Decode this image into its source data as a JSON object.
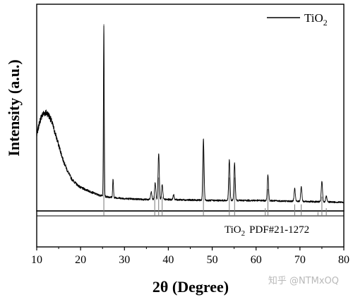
{
  "chart_data": {
    "type": "line",
    "xlabel": "2θ (Degree)",
    "ylabel": "Intensity (a.u.)",
    "xlim": [
      10,
      80
    ],
    "xticks": [
      10,
      20,
      30,
      40,
      50,
      60,
      70,
      80
    ],
    "y_ticks_shown": false,
    "grid": false,
    "legend_position": "top-right",
    "series": [
      {
        "name": "TiO2",
        "legend_main": "TiO",
        "legend_sub": "2",
        "color": "#000000",
        "profile": [
          {
            "x": 10.0,
            "y": 0.38
          },
          {
            "x": 10.5,
            "y": 0.44
          },
          {
            "x": 11.0,
            "y": 0.48
          },
          {
            "x": 11.5,
            "y": 0.5
          },
          {
            "x": 12.0,
            "y": 0.505
          },
          {
            "x": 12.5,
            "y": 0.5
          },
          {
            "x": 13.0,
            "y": 0.48
          },
          {
            "x": 13.5,
            "y": 0.45
          },
          {
            "x": 14.0,
            "y": 0.41
          },
          {
            "x": 15.0,
            "y": 0.33
          },
          {
            "x": 16.0,
            "y": 0.25
          },
          {
            "x": 17.0,
            "y": 0.19
          },
          {
            "x": 18.0,
            "y": 0.145
          },
          {
            "x": 19.0,
            "y": 0.12
          },
          {
            "x": 20.0,
            "y": 0.1
          },
          {
            "x": 21.0,
            "y": 0.09
          },
          {
            "x": 22.0,
            "y": 0.08
          },
          {
            "x": 23.0,
            "y": 0.07
          },
          {
            "x": 24.0,
            "y": 0.06
          },
          {
            "x": 26.0,
            "y": 0.05
          },
          {
            "x": 28.0,
            "y": 0.045
          },
          {
            "x": 30.0,
            "y": 0.04
          },
          {
            "x": 35.0,
            "y": 0.035
          },
          {
            "x": 40.0,
            "y": 0.035
          },
          {
            "x": 50.0,
            "y": 0.03
          },
          {
            "x": 60.0,
            "y": 0.03
          },
          {
            "x": 70.0,
            "y": 0.025
          },
          {
            "x": 80.0,
            "y": 0.02
          }
        ],
        "peaks": [
          {
            "x": 25.3,
            "height": 0.92
          },
          {
            "x": 27.4,
            "height": 0.1
          },
          {
            "x": 36.1,
            "height": 0.04
          },
          {
            "x": 37.0,
            "height": 0.09
          },
          {
            "x": 37.8,
            "height": 0.25
          },
          {
            "x": 38.6,
            "height": 0.08
          },
          {
            "x": 41.2,
            "height": 0.025
          },
          {
            "x": 48.0,
            "height": 0.33
          },
          {
            "x": 53.9,
            "height": 0.22
          },
          {
            "x": 55.1,
            "height": 0.2
          },
          {
            "x": 62.7,
            "height": 0.14
          },
          {
            "x": 68.8,
            "height": 0.07
          },
          {
            "x": 70.3,
            "height": 0.08
          },
          {
            "x": 75.0,
            "height": 0.11
          },
          {
            "x": 76.0,
            "height": 0.03
          }
        ]
      }
    ],
    "reference": {
      "label_main": "TiO",
      "label_sub": "2",
      "label_suffix": "PDF#21-1272",
      "lines": [
        {
          "x": 25.3,
          "intensity": 1.0
        },
        {
          "x": 36.9,
          "intensity": 0.1
        },
        {
          "x": 37.8,
          "intensity": 0.2
        },
        {
          "x": 38.6,
          "intensity": 0.1
        },
        {
          "x": 48.0,
          "intensity": 0.35
        },
        {
          "x": 53.9,
          "intensity": 0.2
        },
        {
          "x": 55.1,
          "intensity": 0.2
        },
        {
          "x": 62.1,
          "intensity": 0.04
        },
        {
          "x": 62.7,
          "intensity": 0.14
        },
        {
          "x": 68.8,
          "intensity": 0.06
        },
        {
          "x": 70.3,
          "intensity": 0.06
        },
        {
          "x": 74.1,
          "intensity": 0.02
        },
        {
          "x": 75.0,
          "intensity": 0.1
        },
        {
          "x": 76.0,
          "intensity": 0.04
        }
      ]
    }
  },
  "watermark": "知乎 @NTMxOQ"
}
